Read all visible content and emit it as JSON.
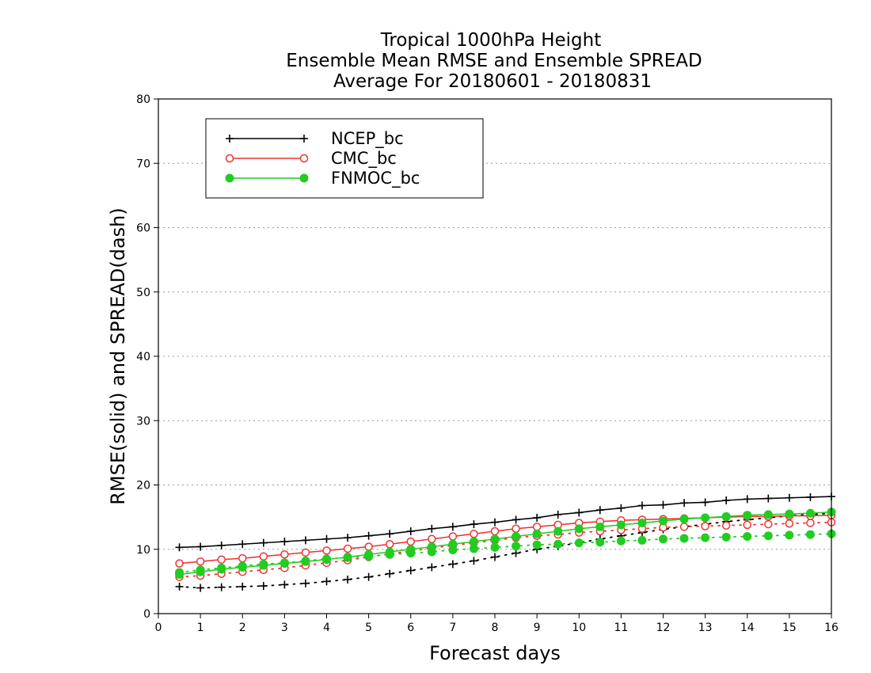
{
  "chart_data": {
    "type": "line",
    "title_lines": [
      "Tropical 1000hPa Height",
      "Ensemble Mean RMSE and Ensemble SPREAD",
      "Average For 20180601 - 20180831"
    ],
    "xlabel": "Forecast days",
    "ylabel": "RMSE(solid) and SPREAD(dash)",
    "xlim": [
      0,
      16
    ],
    "ylim": [
      0,
      80
    ],
    "xticks": [
      0,
      1,
      2,
      3,
      4,
      5,
      6,
      7,
      8,
      9,
      10,
      11,
      12,
      13,
      14,
      15,
      16
    ],
    "yticks": [
      0,
      10,
      20,
      30,
      40,
      50,
      60,
      70,
      80
    ],
    "grid": "horizontal dotted",
    "legend_position": "top-left",
    "x": [
      0.5,
      1,
      1.5,
      2,
      2.5,
      3,
      3.5,
      4,
      4.5,
      5,
      5.5,
      6,
      6.5,
      7,
      7.5,
      8,
      8.5,
      9,
      9.5,
      10,
      10.5,
      11,
      11.5,
      12,
      12.5,
      13,
      13.5,
      14,
      14.5,
      15,
      15.5,
      16
    ],
    "series": [
      {
        "name": "NCEP_bc",
        "color": "#000000",
        "marker": "plus",
        "rmse": [
          10.3,
          10.4,
          10.6,
          10.8,
          11.0,
          11.2,
          11.4,
          11.6,
          11.8,
          12.1,
          12.4,
          12.8,
          13.2,
          13.5,
          13.9,
          14.2,
          14.6,
          14.9,
          15.4,
          15.7,
          16.1,
          16.4,
          16.8,
          16.9,
          17.2,
          17.3,
          17.6,
          17.8,
          17.9,
          18.0,
          18.1,
          18.2
        ],
        "spread": [
          4.2,
          4.0,
          4.1,
          4.2,
          4.3,
          4.5,
          4.7,
          5.0,
          5.3,
          5.7,
          6.2,
          6.7,
          7.2,
          7.7,
          8.2,
          8.8,
          9.4,
          10.0,
          10.5,
          11.0,
          11.6,
          12.1,
          12.6,
          13.1,
          13.5,
          13.9,
          14.3,
          14.6,
          14.9,
          15.2,
          15.4,
          15.6
        ]
      },
      {
        "name": "CMC_bc",
        "color": "#ee3333",
        "marker": "open-circle",
        "rmse": [
          7.8,
          8.1,
          8.4,
          8.6,
          8.9,
          9.2,
          9.5,
          9.8,
          10.1,
          10.4,
          10.8,
          11.2,
          11.6,
          12.0,
          12.4,
          12.8,
          13.2,
          13.5,
          13.8,
          14.1,
          14.3,
          14.5,
          14.6,
          14.7,
          14.8,
          14.9,
          15.0,
          15.1,
          15.1,
          15.2,
          15.2,
          15.3
        ],
        "spread": [
          5.7,
          5.9,
          6.2,
          6.5,
          6.8,
          7.1,
          7.5,
          7.9,
          8.3,
          8.8,
          9.3,
          9.7,
          10.2,
          10.6,
          11.0,
          11.4,
          11.8,
          12.1,
          12.3,
          12.6,
          12.8,
          13.0,
          13.2,
          13.4,
          13.5,
          13.6,
          13.7,
          13.8,
          13.9,
          14.0,
          14.1,
          14.2
        ]
      },
      {
        "name": "FNMOC_bc",
        "color": "#22cc22",
        "marker": "filled-circle",
        "rmse": [
          6.1,
          6.5,
          6.9,
          7.2,
          7.5,
          7.8,
          8.1,
          8.4,
          8.8,
          9.2,
          9.6,
          10.0,
          10.4,
          10.8,
          11.2,
          11.6,
          12.0,
          12.4,
          12.8,
          13.2,
          13.5,
          13.8,
          14.1,
          14.4,
          14.7,
          14.9,
          15.1,
          15.3,
          15.4,
          15.5,
          15.6,
          15.8
        ],
        "spread": [
          6.4,
          6.8,
          7.1,
          7.4,
          7.7,
          7.9,
          8.2,
          8.5,
          8.7,
          8.9,
          9.2,
          9.4,
          9.6,
          9.9,
          10.1,
          10.3,
          10.5,
          10.7,
          10.8,
          11.0,
          11.1,
          11.3,
          11.4,
          11.6,
          11.7,
          11.8,
          11.9,
          12.0,
          12.1,
          12.2,
          12.3,
          12.4
        ]
      }
    ]
  }
}
